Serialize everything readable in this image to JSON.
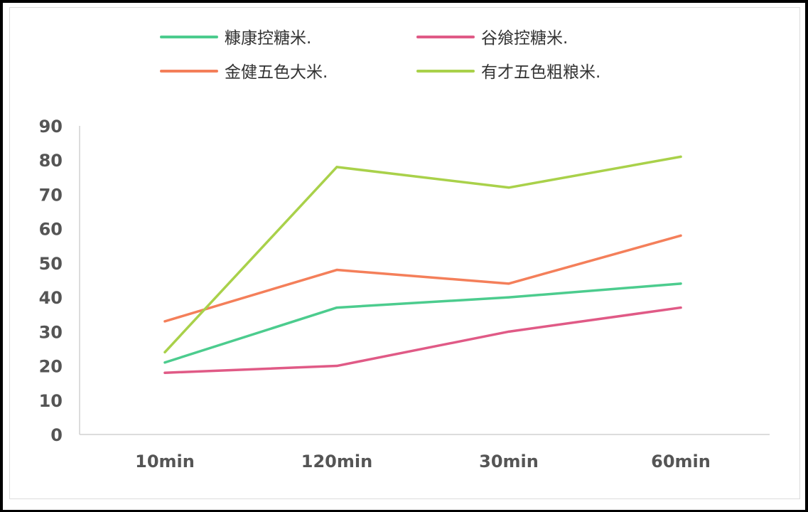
{
  "chart_data": {
    "type": "line",
    "categories": [
      "10min",
      "120min",
      "30min",
      "60min"
    ],
    "series": [
      {
        "name": "糠康控糖米.",
        "color": "#4ccc8e",
        "values": [
          21,
          37,
          40,
          44
        ]
      },
      {
        "name": "谷飨控糖米.",
        "color": "#e05a86",
        "values": [
          18,
          20,
          30,
          37
        ]
      },
      {
        "name": "金健五色大米.",
        "color": "#f47f5a",
        "values": [
          33,
          48,
          44,
          58
        ]
      },
      {
        "name": "有才五色粗粮米.",
        "color": "#a9d14a",
        "values": [
          24,
          78,
          72,
          81
        ]
      }
    ],
    "ylim": [
      0,
      90
    ],
    "yticks": [
      "0",
      "10",
      "20",
      "30",
      "40",
      "50",
      "60",
      "70",
      "80",
      "90"
    ],
    "grid": false,
    "legend_position": "top"
  }
}
